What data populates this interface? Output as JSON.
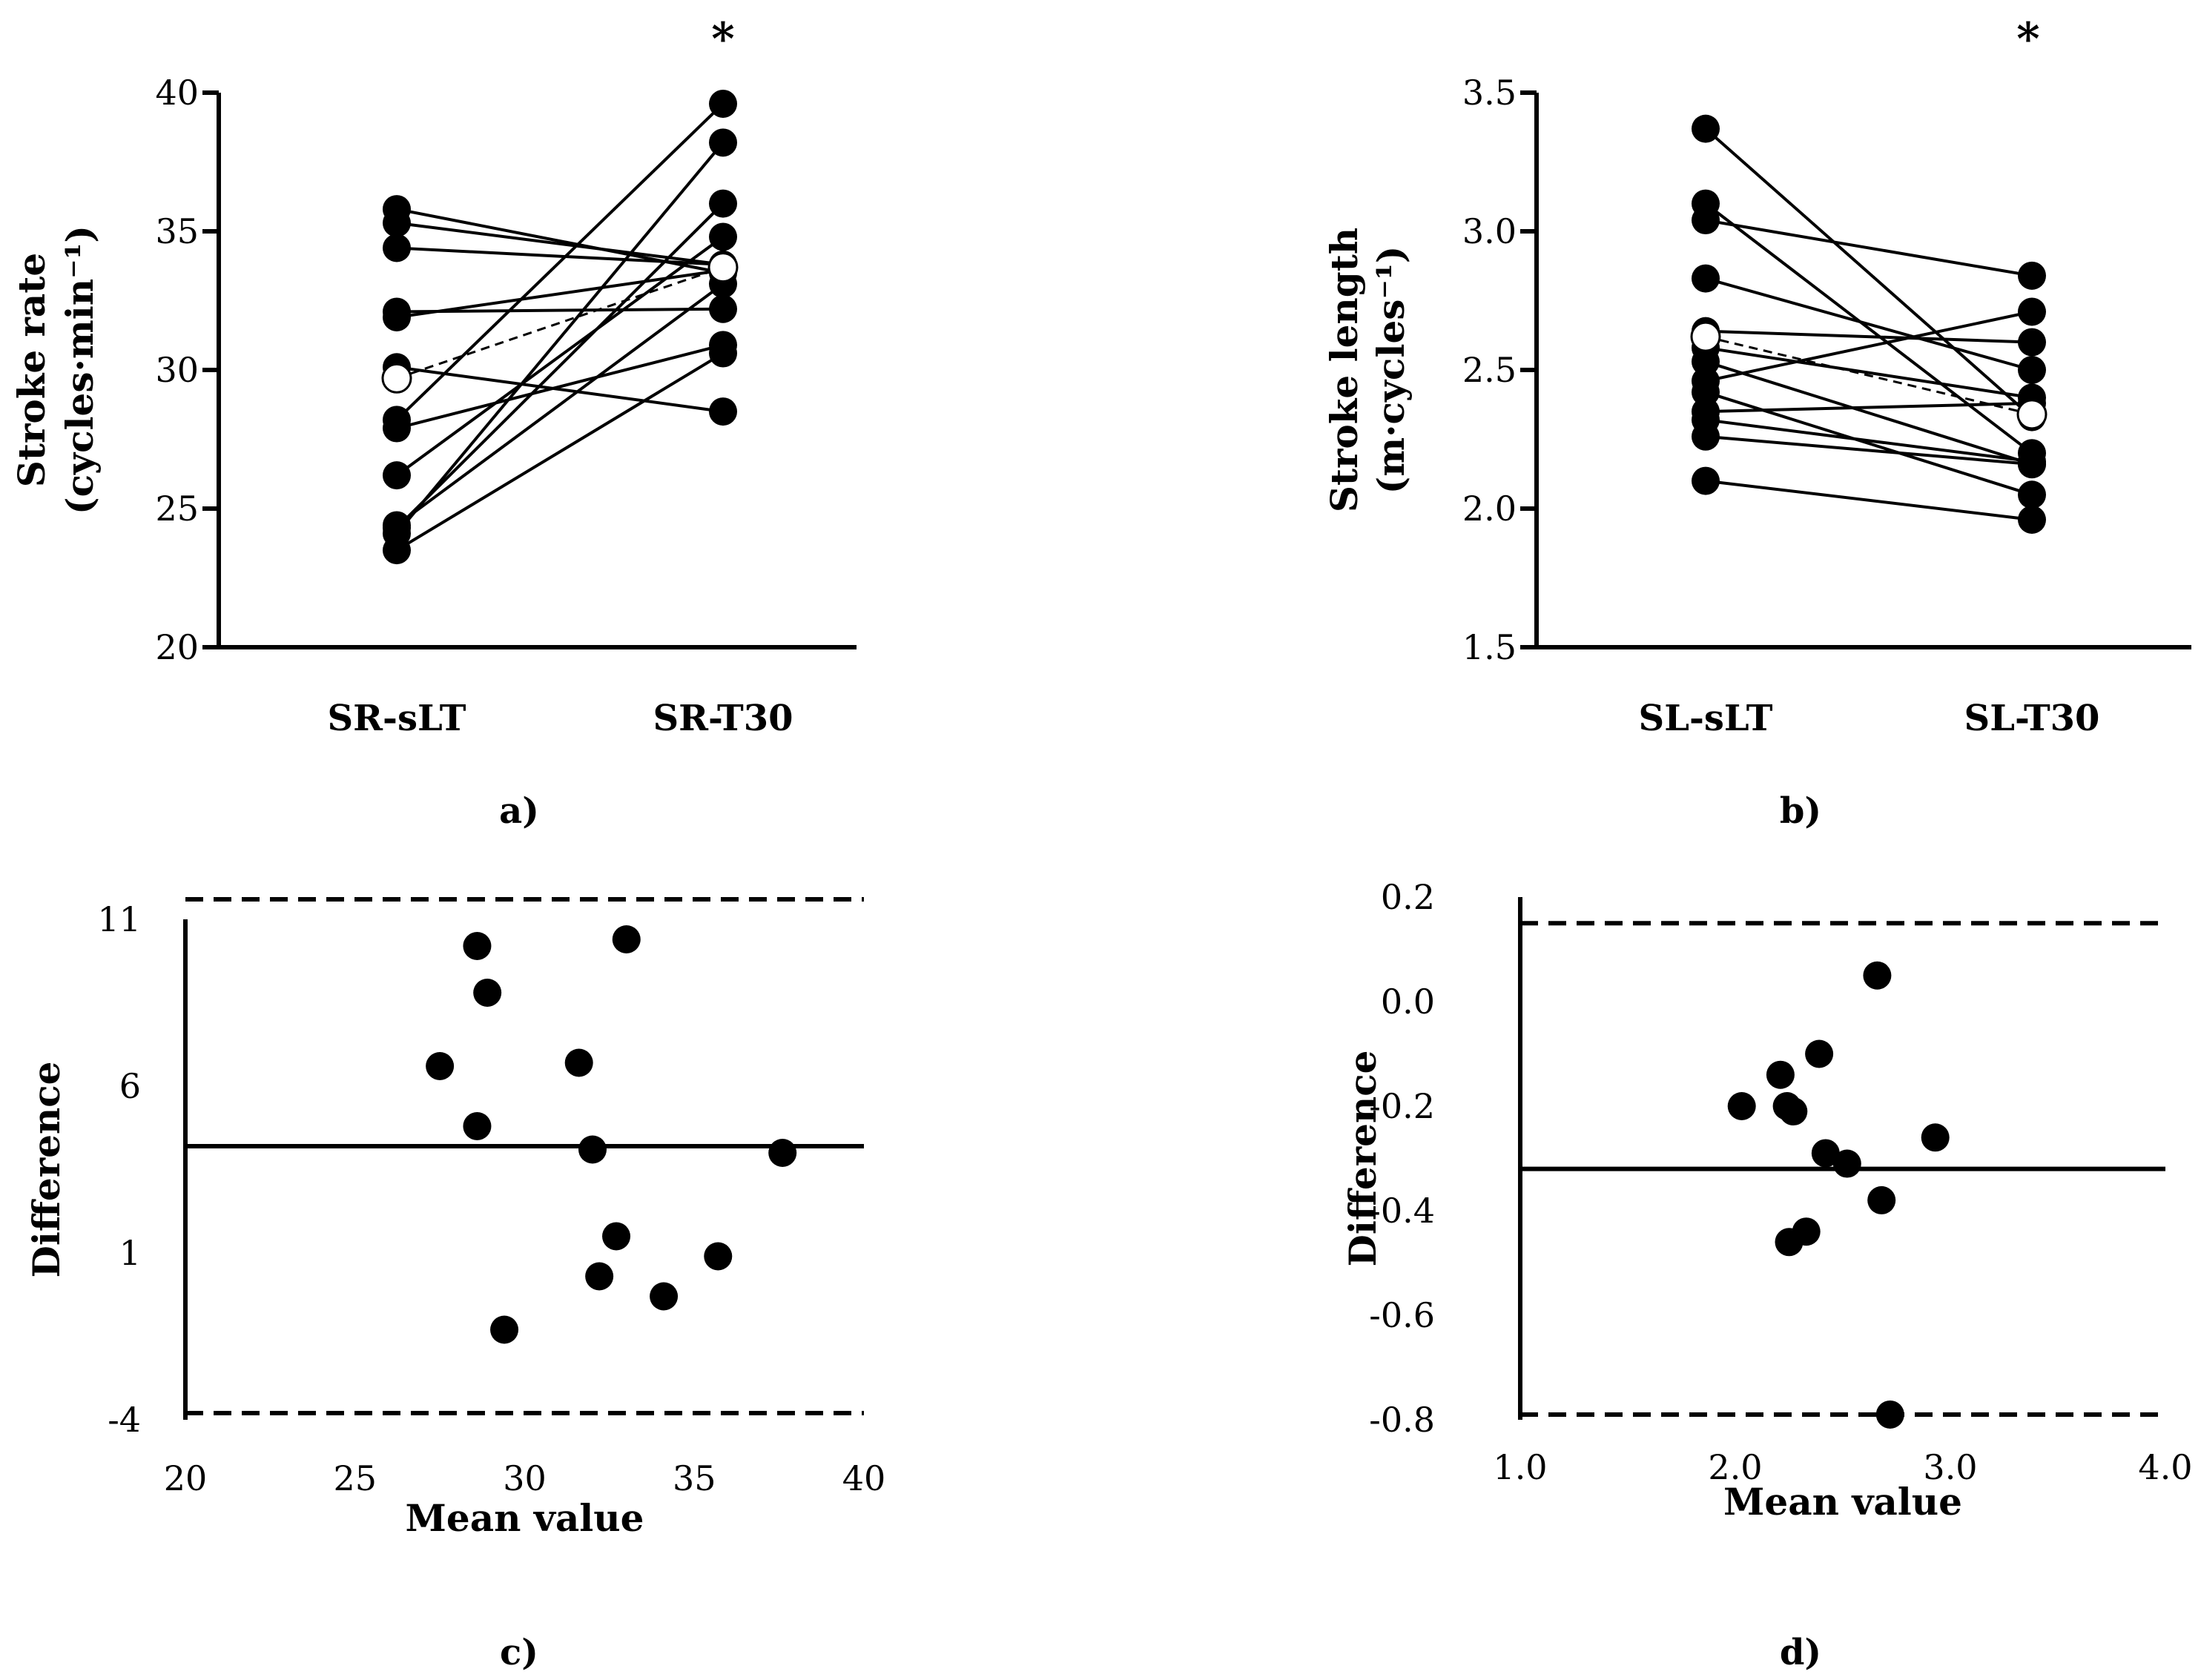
{
  "chart_data": [
    {
      "panel": "a)",
      "type": "line",
      "ylabel": "Stroke rate",
      "ylabel_unit": "(cycles·min⁻¹)",
      "categories": [
        "SR-sLT",
        "SR-T30"
      ],
      "ylim": [
        20,
        40
      ],
      "yticks": [
        "20",
        "25",
        "30",
        "35",
        "40"
      ],
      "annotation": "*",
      "pairs": [
        [
          35.8,
          33.5
        ],
        [
          35.3,
          33.8
        ],
        [
          34.4,
          33.8
        ],
        [
          32.1,
          32.2
        ],
        [
          31.9,
          33.6
        ],
        [
          30.1,
          28.5
        ],
        [
          28.2,
          39.6
        ],
        [
          27.9,
          30.9
        ],
        [
          26.2,
          34.8
        ],
        [
          24.4,
          33.1
        ],
        [
          24.1,
          38.2
        ],
        [
          23.5,
          30.6
        ],
        [
          24.3,
          36.0
        ]
      ],
      "mean": [
        29.7,
        33.7
      ]
    },
    {
      "panel": "b)",
      "type": "line",
      "ylabel": "Stroke length",
      "ylabel_unit": "(m·cycles⁻¹)",
      "categories": [
        "SL-sLT",
        "SL-T30"
      ],
      "ylim": [
        1.5,
        3.5
      ],
      "yticks": [
        "1.5",
        "2.0",
        "2.5",
        "3.0",
        "3.5"
      ],
      "annotation": "*",
      "pairs": [
        [
          3.37,
          2.33
        ],
        [
          3.1,
          2.2
        ],
        [
          3.04,
          2.84
        ],
        [
          2.83,
          2.5
        ],
        [
          2.64,
          2.6
        ],
        [
          2.58,
          2.4
        ],
        [
          2.53,
          2.16
        ],
        [
          2.46,
          2.71
        ],
        [
          2.42,
          2.05
        ],
        [
          2.35,
          2.38
        ],
        [
          2.32,
          2.17
        ],
        [
          2.26,
          2.16
        ],
        [
          2.1,
          1.96
        ]
      ],
      "mean": [
        2.62,
        2.34
      ]
    },
    {
      "panel": "c)",
      "type": "scatter",
      "xlabel": "Mean value",
      "ylabel": "Difference",
      "xlim": [
        20,
        40
      ],
      "ylim": [
        -4,
        11
      ],
      "xticks": [
        "20",
        "25",
        "30",
        "35",
        "40"
      ],
      "yticks": [
        "-4",
        "1",
        "6",
        "11"
      ],
      "points": [
        [
          28.6,
          10.2
        ],
        [
          28.9,
          8.8
        ],
        [
          27.5,
          6.6
        ],
        [
          28.6,
          4.8
        ],
        [
          29.4,
          -1.3
        ],
        [
          31.6,
          6.7
        ],
        [
          32.0,
          4.1
        ],
        [
          32.7,
          1.5
        ],
        [
          32.2,
          0.3
        ],
        [
          33.0,
          10.4
        ],
        [
          34.1,
          -0.3
        ],
        [
          35.7,
          0.9
        ],
        [
          37.6,
          4.0
        ]
      ],
      "mean_line": 4.2,
      "limits": [
        11.6,
        -3.8
      ]
    },
    {
      "panel": "d)",
      "type": "scatter",
      "xlabel": "Mean value",
      "ylabel": "Difference",
      "xlim": [
        1.0,
        4.0
      ],
      "ylim": [
        -0.8,
        0.2
      ],
      "xticks": [
        "1.0",
        "2.0",
        "3.0",
        "4.0"
      ],
      "yticks": [
        "-0.8",
        "-0.6",
        "-0.4",
        "-0.2",
        "0.0",
        "0.2"
      ],
      "points": [
        [
          2.03,
          -0.2
        ],
        [
          2.21,
          -0.14
        ],
        [
          2.24,
          -0.2
        ],
        [
          2.27,
          -0.21
        ],
        [
          2.39,
          -0.1
        ],
        [
          2.42,
          -0.29
        ],
        [
          2.52,
          -0.31
        ],
        [
          2.66,
          0.05
        ],
        [
          2.68,
          -0.38
        ],
        [
          2.93,
          -0.26
        ],
        [
          2.25,
          -0.46
        ],
        [
          2.33,
          -0.44
        ],
        [
          2.72,
          -0.79
        ]
      ],
      "mean_line": -0.32,
      "limits": [
        0.15,
        -0.79
      ]
    }
  ]
}
